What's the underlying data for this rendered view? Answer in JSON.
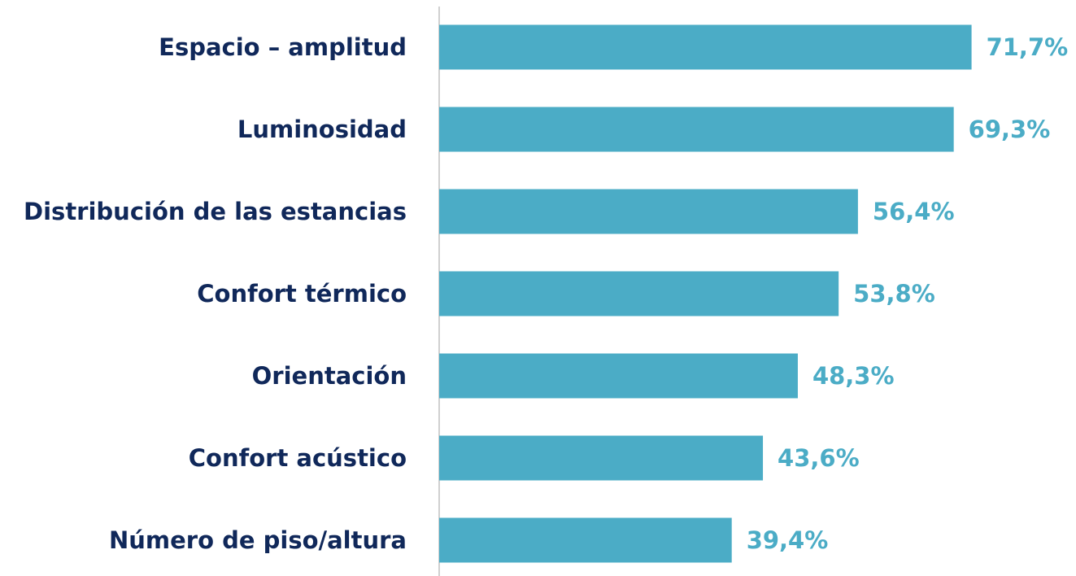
{
  "chart_data": {
    "type": "bar",
    "orientation": "horizontal",
    "categories": [
      "Espacio – amplitud",
      "Luminosidad",
      "Distribución de las estancias",
      "Confort térmico",
      "Orientación",
      "Confort acústico",
      "Número de piso/altura"
    ],
    "values": [
      71.7,
      69.3,
      56.4,
      53.8,
      48.3,
      43.6,
      39.4
    ],
    "value_labels": [
      "71,7%",
      "69,3%",
      "56,4%",
      "53,8%",
      "48,3%",
      "43,6%",
      "39,4%"
    ],
    "color": "#4bacc6",
    "xlim": [
      0,
      85
    ]
  }
}
